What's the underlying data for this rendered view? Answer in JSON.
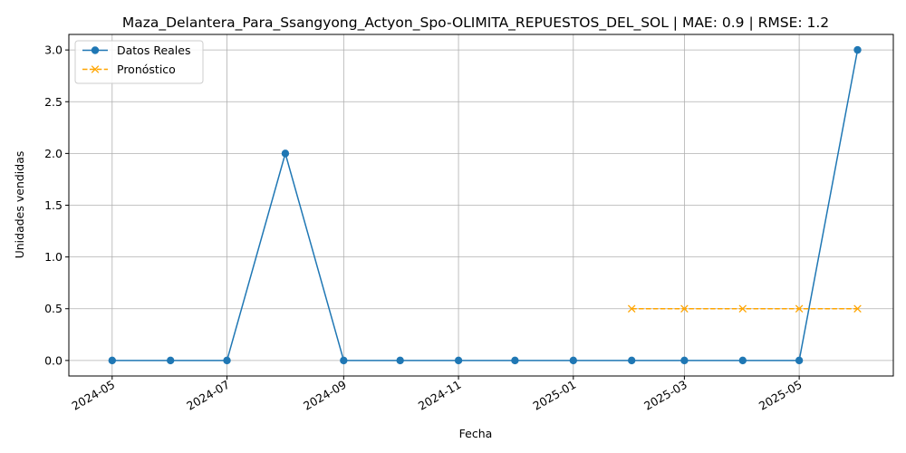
{
  "chart_data": {
    "type": "line",
    "title": "Maza_Delantera_Para_Ssangyong_Actyon_Spo-OLIMITA_REPUESTOS_DEL_SOL | MAE: 0.9 | RMSE: 1.2",
    "xlabel": "Fecha",
    "ylabel": "Unidades vendidas",
    "x_ticks": [
      "2024-05",
      "2024-07",
      "2024-09",
      "2024-11",
      "2025-01",
      "2025-03",
      "2025-05"
    ],
    "y_ticks": [
      "0.0",
      "0.5",
      "1.0",
      "1.5",
      "2.0",
      "2.5",
      "3.0"
    ],
    "ylim": [
      -0.15,
      3.15
    ],
    "xlim": [
      "2024-04-08",
      "2025-06-20"
    ],
    "grid": true,
    "legend_position": "top-left",
    "series": [
      {
        "name": "Datos Reales",
        "color": "#1f77b4",
        "marker": "circle",
        "linestyle": "solid",
        "x": [
          "2024-05-01",
          "2024-06-01",
          "2024-07-01",
          "2024-08-01",
          "2024-09-01",
          "2024-10-01",
          "2024-11-01",
          "2024-12-01",
          "2025-01-01",
          "2025-02-01",
          "2025-03-01",
          "2025-04-01",
          "2025-05-01",
          "2025-06-01"
        ],
        "values": [
          0,
          0,
          0,
          2,
          0,
          0,
          0,
          0,
          0,
          0,
          0,
          0,
          0,
          3
        ]
      },
      {
        "name": "Pronóstico",
        "color": "#ffa500",
        "marker": "x",
        "linestyle": "dashed",
        "x": [
          "2025-02-01",
          "2025-03-01",
          "2025-04-01",
          "2025-05-01",
          "2025-06-01"
        ],
        "values": [
          0.5,
          0.5,
          0.5,
          0.5,
          0.5
        ]
      }
    ]
  }
}
